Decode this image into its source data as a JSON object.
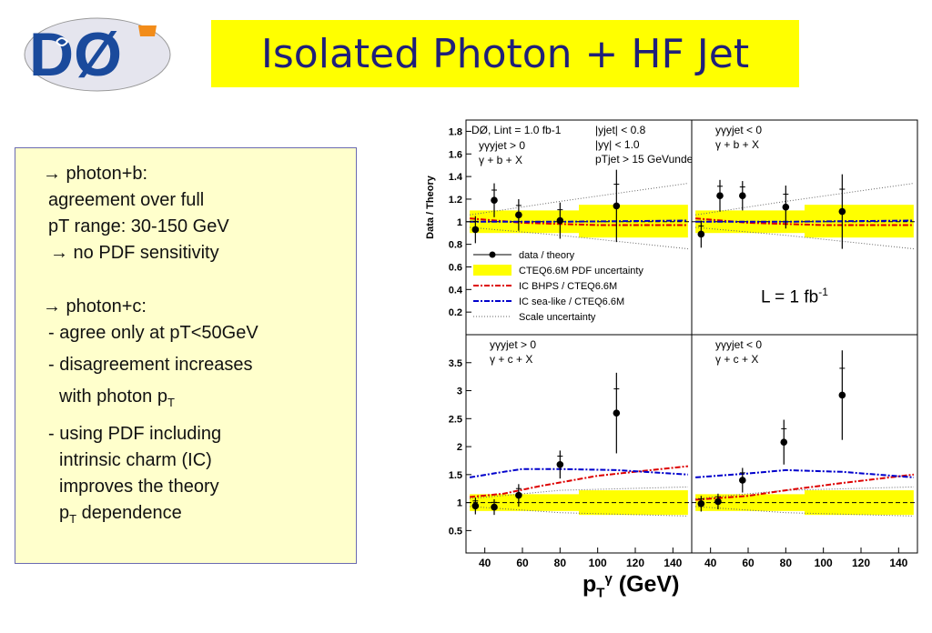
{
  "header": {
    "title": "Isolated Photon + HF Jet",
    "logo_text": "DØ"
  },
  "notes": {
    "b_head": "→ photon+b:",
    "b_l1": "agreement over full",
    "b_l2": "pT range: 30-150 GeV",
    "b_l3": "→ no PDF sensitivity",
    "c_head": "→ photon+c:",
    "c_l1": "- agree only at pT<50GeV",
    "c_l2": "- disagreement increases",
    "c_l3": "with photon p",
    "c_l3_sub": "T",
    "c_l4": "- using PDF including",
    "c_l5": "intrinsic charm (IC)",
    "c_l6": "improves the theory",
    "c_l7": "p",
    "c_l7_sub": "T",
    "c_l7_rest": " dependence"
  },
  "luminosity_label": "L = 1 fb",
  "luminosity_sup": "-1",
  "x_unit_label": {
    "p": "p",
    "sub": "T",
    "sup": "γ",
    "rest": " (GeV)"
  },
  "chart_data": {
    "type": "scatter",
    "ylabel": "Data / Theory",
    "x_ticks": [
      40,
      60,
      80,
      100,
      120,
      140
    ],
    "x_range": [
      30,
      150
    ],
    "colors": {
      "band": "#ffff00",
      "bhps": "#dd0000",
      "sealike": "#0000cc",
      "scale": "#666666",
      "data": "#000000"
    },
    "panels": [
      {
        "id": "b-forward",
        "annotations": [
          "DØ, L",
          "int",
          " = 1.0 fb",
          "-1",
          "y",
          "γ",
          "y",
          "jet",
          " > 0",
          "γ + b + X",
          "|y",
          "jet",
          "| < 0.8",
          "|y",
          "γ",
          "| < 1.0",
          "p",
          "T",
          "jet",
          " > 15 GeV"
        ],
        "ylim": [
          0,
          1.9
        ],
        "y_ticks": [
          0.2,
          0.4,
          0.6,
          0.8,
          1,
          1.2,
          1.4,
          1.6,
          1.8
        ],
        "points": [
          {
            "x": 35,
            "y": 0.93,
            "err": 0.12
          },
          {
            "x": 45,
            "y": 1.19,
            "err": 0.15
          },
          {
            "x": 58,
            "y": 1.06,
            "err": 0.14
          },
          {
            "x": 80,
            "y": 1.01,
            "err": 0.16
          },
          {
            "x": 110,
            "y": 1.14,
            "err": 0.32
          }
        ],
        "band": [
          {
            "x0": 32,
            "x1": 90,
            "lo": 0.9,
            "hi": 1.1
          },
          {
            "x0": 90,
            "x1": 148,
            "lo": 0.86,
            "hi": 1.15
          }
        ],
        "bhps": [
          [
            32,
            1.03
          ],
          [
            60,
            0.99
          ],
          [
            100,
            0.97
          ],
          [
            148,
            0.97
          ]
        ],
        "sealike": [
          [
            32,
            1.0
          ],
          [
            80,
            1.0
          ],
          [
            148,
            1.01
          ]
        ],
        "scale_hi": [
          [
            32,
            1.06
          ],
          [
            80,
            1.18
          ],
          [
            148,
            1.34
          ]
        ],
        "scale_lo": [
          [
            32,
            0.95
          ],
          [
            80,
            0.88
          ],
          [
            148,
            0.76
          ]
        ],
        "legend": [
          "data / theory",
          "CTEQ6.6M PDF uncertainty",
          "IC BHPS / CTEQ6.6M",
          "IC sea-like / CTEQ6.6M",
          "Scale uncertainty"
        ]
      },
      {
        "id": "b-backward",
        "annotations": [
          "y",
          "γ",
          "y",
          "jet",
          " < 0",
          "γ + b + X"
        ],
        "ylim": [
          0,
          1.9
        ],
        "points": [
          {
            "x": 35,
            "y": 0.89,
            "err": 0.12
          },
          {
            "x": 45,
            "y": 1.23,
            "err": 0.14
          },
          {
            "x": 57,
            "y": 1.23,
            "err": 0.13
          },
          {
            "x": 80,
            "y": 1.13,
            "err": 0.19
          },
          {
            "x": 110,
            "y": 1.09,
            "err": 0.33
          }
        ],
        "band": [
          {
            "x0": 32,
            "x1": 90,
            "lo": 0.9,
            "hi": 1.1
          },
          {
            "x0": 90,
            "x1": 148,
            "lo": 0.86,
            "hi": 1.15
          }
        ],
        "bhps": [
          [
            32,
            1.03
          ],
          [
            60,
            0.99
          ],
          [
            100,
            0.97
          ],
          [
            148,
            0.97
          ]
        ],
        "sealike": [
          [
            32,
            1.0
          ],
          [
            80,
            1.0
          ],
          [
            148,
            1.01
          ]
        ],
        "scale_hi": [
          [
            32,
            1.06
          ],
          [
            80,
            1.18
          ],
          [
            148,
            1.34
          ]
        ],
        "scale_lo": [
          [
            32,
            0.95
          ],
          [
            80,
            0.88
          ],
          [
            148,
            0.76
          ]
        ]
      },
      {
        "id": "c-forward",
        "annotations": [
          "y",
          "γ",
          "y",
          "jet",
          " > 0",
          "γ + c + X"
        ],
        "ylim": [
          0.1,
          4.0
        ],
        "y_ticks": [
          0.5,
          1,
          1.5,
          2,
          2.5,
          3,
          3.5
        ],
        "points": [
          {
            "x": 35,
            "y": 0.94,
            "err": 0.15
          },
          {
            "x": 45,
            "y": 0.92,
            "err": 0.14
          },
          {
            "x": 58,
            "y": 1.13,
            "err": 0.2
          },
          {
            "x": 80,
            "y": 1.68,
            "err": 0.25
          },
          {
            "x": 110,
            "y": 2.6,
            "err": 0.72
          }
        ],
        "band": [
          {
            "x0": 32,
            "x1": 90,
            "lo": 0.85,
            "hi": 1.15
          },
          {
            "x0": 90,
            "x1": 148,
            "lo": 0.78,
            "hi": 1.22
          }
        ],
        "bhps": [
          [
            32,
            1.1
          ],
          [
            50,
            1.16
          ],
          [
            70,
            1.3
          ],
          [
            100,
            1.48
          ],
          [
            148,
            1.65
          ]
        ],
        "sealike": [
          [
            32,
            1.45
          ],
          [
            50,
            1.55
          ],
          [
            60,
            1.6
          ],
          [
            80,
            1.6
          ],
          [
            110,
            1.58
          ],
          [
            148,
            1.5
          ]
        ],
        "scale_hi": [
          [
            32,
            1.07
          ],
          [
            80,
            1.22
          ],
          [
            148,
            1.28
          ]
        ],
        "scale_lo": [
          [
            32,
            0.93
          ],
          [
            80,
            0.82
          ],
          [
            148,
            0.76
          ]
        ]
      },
      {
        "id": "c-backward",
        "annotations": [
          "y",
          "γ",
          "y",
          "jet",
          " < 0",
          "γ + c + X"
        ],
        "ylim": [
          0.1,
          4.0
        ],
        "points": [
          {
            "x": 35,
            "y": 0.98,
            "err": 0.14
          },
          {
            "x": 44,
            "y": 1.02,
            "err": 0.14
          },
          {
            "x": 57,
            "y": 1.4,
            "err": 0.22
          },
          {
            "x": 79,
            "y": 2.08,
            "err": 0.4
          },
          {
            "x": 110,
            "y": 2.92,
            "err": 0.8
          }
        ],
        "band": [
          {
            "x0": 32,
            "x1": 90,
            "lo": 0.85,
            "hi": 1.15
          },
          {
            "x0": 90,
            "x1": 148,
            "lo": 0.78,
            "hi": 1.22
          }
        ],
        "bhps": [
          [
            32,
            1.05
          ],
          [
            60,
            1.12
          ],
          [
            80,
            1.22
          ],
          [
            110,
            1.35
          ],
          [
            148,
            1.5
          ]
        ],
        "sealike": [
          [
            32,
            1.45
          ],
          [
            60,
            1.52
          ],
          [
            80,
            1.58
          ],
          [
            110,
            1.55
          ],
          [
            148,
            1.45
          ]
        ],
        "scale_hi": [
          [
            32,
            1.07
          ],
          [
            80,
            1.22
          ],
          [
            148,
            1.28
          ]
        ],
        "scale_lo": [
          [
            32,
            0.93
          ],
          [
            80,
            0.82
          ],
          [
            148,
            0.76
          ]
        ]
      }
    ]
  }
}
